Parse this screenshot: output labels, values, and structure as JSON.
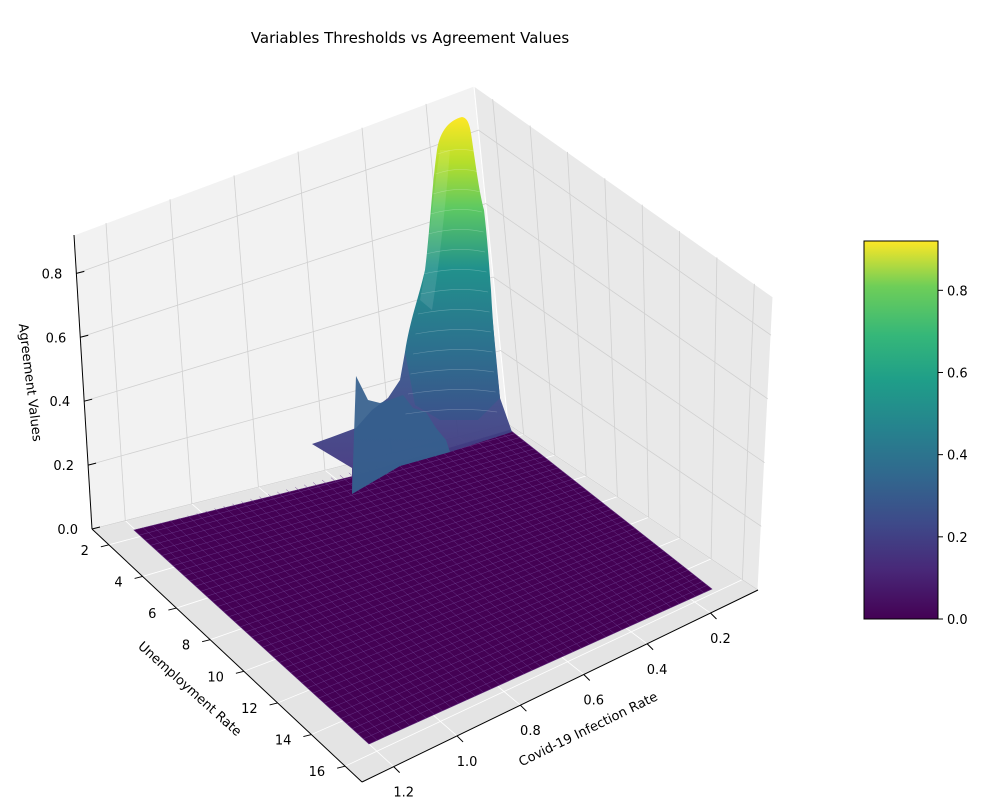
{
  "chart_data": {
    "type": "surface3d",
    "title": "Variables Thresholds vs Agreement Values",
    "xlabel": "Covid-19 Infection Rate",
    "ylabel": "Unemployment Rate",
    "zlabel": "Agreement Values",
    "xlim": [
      0.05,
      1.3
    ],
    "ylim": [
      1,
      17
    ],
    "zlim": [
      0,
      0.92
    ],
    "xticks": [
      "0.2",
      "0.4",
      "0.6",
      "0.8",
      "1.0",
      "1.2"
    ],
    "yticks": [
      "2",
      "4",
      "6",
      "8",
      "10",
      "12",
      "14",
      "16"
    ],
    "zticks": [
      "0.0",
      "0.2",
      "0.4",
      "0.6",
      "0.8"
    ],
    "colormap": "viridis",
    "colorbar": {
      "min": 0.0,
      "max": 0.92,
      "ticks": [
        "0.0",
        "0.2",
        "0.4",
        "0.6",
        "0.8"
      ]
    },
    "grid": true,
    "peak": {
      "x": 0.1,
      "y": 1.0,
      "z": 0.92
    },
    "ridge_profile": [
      {
        "y": 1.0,
        "z": 0.92
      },
      {
        "y": 1.5,
        "z": 0.78
      },
      {
        "y": 2.0,
        "z": 0.6
      },
      {
        "y": 2.5,
        "z": 0.5
      },
      {
        "y": 3.0,
        "z": 0.42
      },
      {
        "y": 3.5,
        "z": 0.34
      },
      {
        "y": 4.0,
        "z": 0.3
      },
      {
        "y": 4.5,
        "z": 0.25
      },
      {
        "y": 5.0,
        "z": 0.2
      },
      {
        "y": 5.5,
        "z": 0.1
      },
      {
        "y": 6.0,
        "z": 0.04
      },
      {
        "y": 7.0,
        "z": 0.0
      }
    ]
  }
}
